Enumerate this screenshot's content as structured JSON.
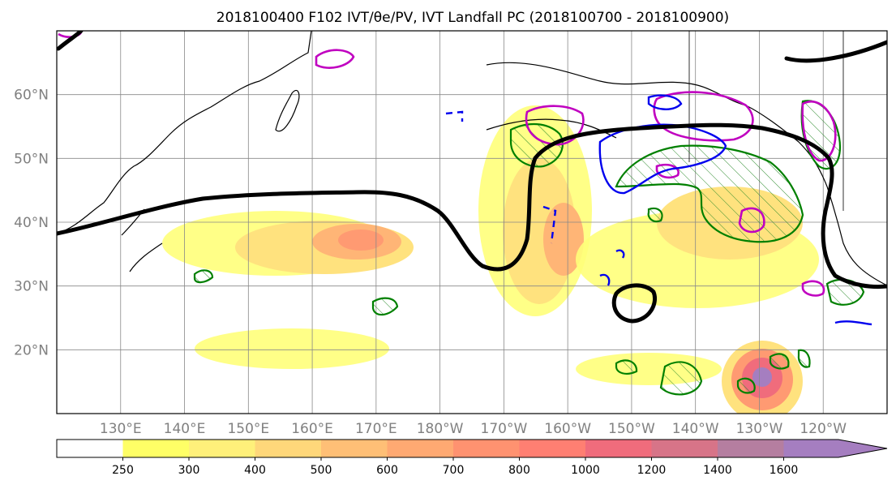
{
  "chart_data": {
    "type": "heatmap",
    "title": "2018100400 F102 IVT/θe/PV, IVT Landfall PC (2018100700 - 2018100900)",
    "map": {
      "lon_range": [
        120,
        250
      ],
      "lat_range": [
        10,
        70
      ],
      "lon_ticks": [
        130,
        140,
        150,
        160,
        170,
        180,
        190,
        200,
        210,
        220,
        230,
        240
      ],
      "lon_tick_labels": [
        "130°E",
        "140°E",
        "150°E",
        "160°E",
        "170°E",
        "180°W",
        "170°W",
        "160°W",
        "150°W",
        "140°W",
        "130°W",
        "120°W"
      ],
      "lat_ticks": [
        20,
        30,
        40,
        50,
        60
      ],
      "lat_tick_labels": [
        "20°N",
        "30°N",
        "40°N",
        "50°N",
        "60°N"
      ],
      "grid": true
    },
    "colorbar": {
      "levels": [
        250,
        300,
        400,
        500,
        600,
        700,
        800,
        1000,
        1200,
        1400,
        1600
      ],
      "tick_labels": [
        "250",
        "300",
        "400",
        "500",
        "600",
        "700",
        "800",
        "1000",
        "1200",
        "1400",
        "1600"
      ],
      "colors": [
        "#ffff66",
        "#fff07a",
        "#ffd77a",
        "#ffbf76",
        "#ffa972",
        "#ff9270",
        "#ff7f72",
        "#f06c7c",
        "#d77488",
        "#b57ea0",
        "#a57ec0"
      ],
      "extend": "max",
      "placement": "bottom"
    },
    "contour_colors": {
      "ivt_landfall_pc": "#000000",
      "theta_e": "#008000",
      "pv_magenta": "#c000c0",
      "pv_blue": "#0000ee"
    }
  }
}
